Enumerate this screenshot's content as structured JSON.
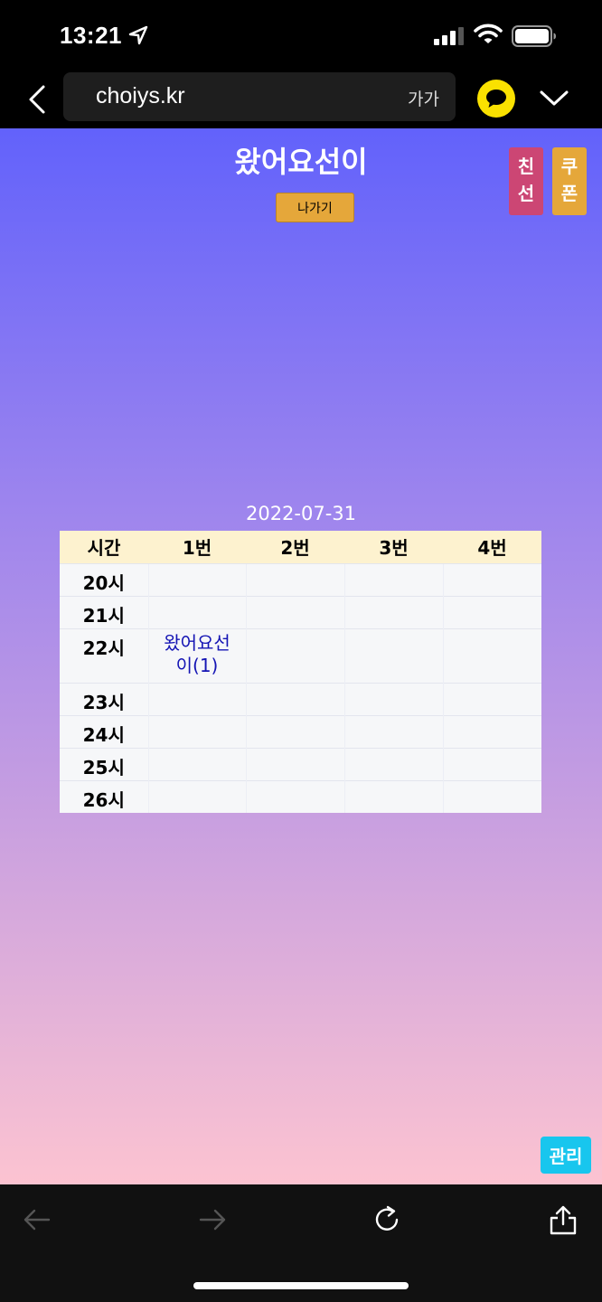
{
  "status_bar": {
    "time": "13:21"
  },
  "browser": {
    "url": "choiys.kr",
    "text_size_label": "가가"
  },
  "page": {
    "title": "왔어요선이",
    "exit_label": "나가기",
    "side_tabs": {
      "friend": [
        "친",
        "선"
      ],
      "coupon": [
        "쿠",
        "폰"
      ]
    },
    "date": "2022-07-31",
    "admin_label": "관리"
  },
  "schedule": {
    "headers": [
      "시간",
      "1번",
      "2번",
      "3번",
      "4번"
    ],
    "rows": [
      {
        "time": "20시",
        "cells": [
          "",
          "",
          "",
          ""
        ]
      },
      {
        "time": "21시",
        "cells": [
          "",
          "",
          "",
          ""
        ]
      },
      {
        "time": "22시",
        "cells": [
          "왔어요선이(1)",
          "",
          "",
          ""
        ]
      },
      {
        "time": "23시",
        "cells": [
          "",
          "",
          "",
          ""
        ]
      },
      {
        "time": "24시",
        "cells": [
          "",
          "",
          "",
          ""
        ]
      },
      {
        "time": "25시",
        "cells": [
          "",
          "",
          "",
          ""
        ]
      },
      {
        "time": "26시",
        "cells": [
          "",
          "",
          "",
          ""
        ]
      }
    ]
  },
  "colors": {
    "gradient_top": "#6262fb",
    "gradient_bottom": "#fcc3d1",
    "exit_button": "#e5a73a",
    "friend_tab": "#cc4674",
    "coupon_tab": "#e5a73a",
    "admin_button": "#18c6ee",
    "booking_text": "#1414b4",
    "header_bg": "#fdf2cf"
  },
  "icons": {
    "location": "location-arrow-icon",
    "signal": "cellular-signal-icon",
    "wifi": "wifi-icon",
    "battery": "battery-icon",
    "back": "chevron-left-icon",
    "kakao": "kakao-talk-icon",
    "dropdown": "chevron-down-icon",
    "toolbar_back": "arrow-left-icon",
    "toolbar_forward": "arrow-right-icon",
    "reload": "reload-icon",
    "share": "share-icon"
  }
}
